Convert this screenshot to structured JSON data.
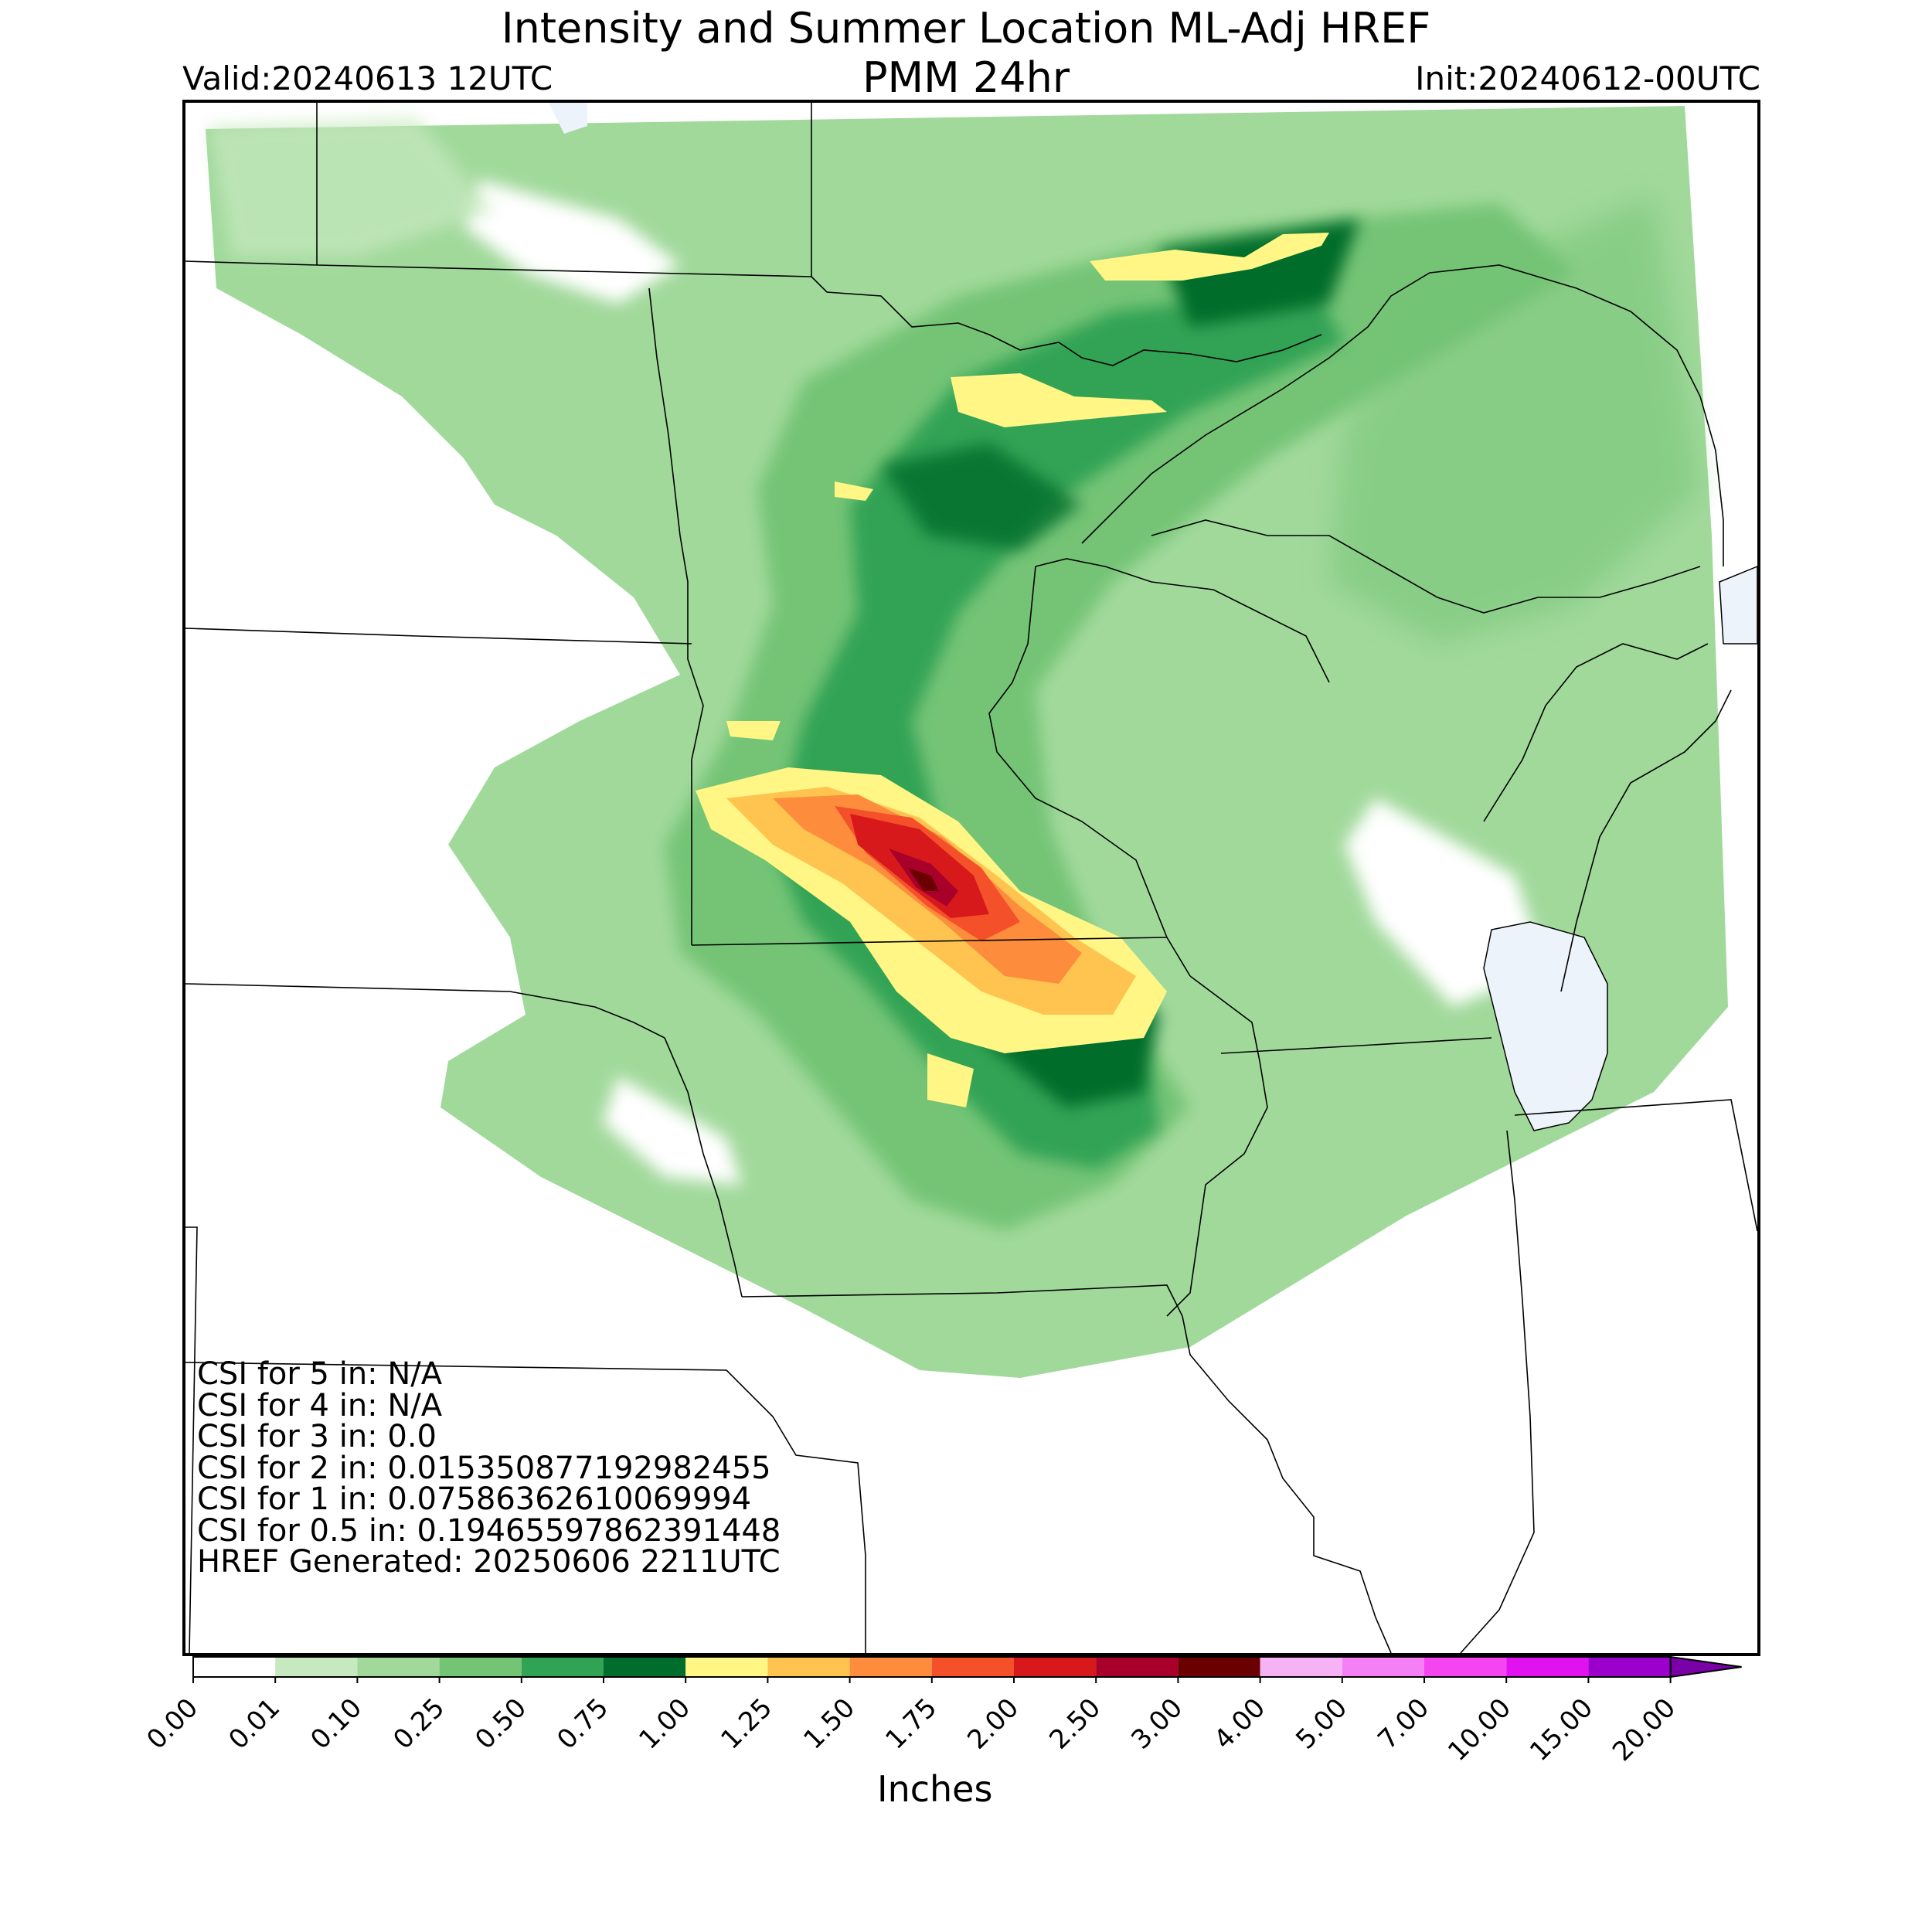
{
  "header": {
    "title_line1": "Intensity and Summer Location ML-Adj HREF",
    "title_line2": "PMM 24hr",
    "valid": "Valid:20240613 12UTC",
    "init": "Init:20240612-00UTC"
  },
  "stats": [
    "CSI for 5 in: N/A",
    "CSI for 4 in: N/A",
    "CSI for 3 in: 0.0",
    "CSI for 2 in: 0.015350877192982455",
    "CSI for 1 in: 0.07586362610069994",
    "CSI for 0.5 in: 0.19465597862391448",
    "HREF Generated: 20250606 2211UTC"
  ],
  "colorbar": {
    "units": "Inches",
    "ticks": [
      "0.00",
      "0.01",
      "0.10",
      "0.25",
      "0.50",
      "0.75",
      "1.00",
      "1.25",
      "1.50",
      "1.75",
      "2.00",
      "2.50",
      "3.00",
      "4.00",
      "5.00",
      "7.00",
      "10.00",
      "15.00",
      "20.00"
    ],
    "colors": [
      "#ffffff",
      "#c7e9c0",
      "#a1d99b",
      "#74c476",
      "#31a354",
      "#006d2c",
      "#fff685",
      "#fec44f",
      "#fd8d3c",
      "#f4512b",
      "#d7191c",
      "#a8002a",
      "#6b0000",
      "#f5b3f5",
      "#f57ff5",
      "#f545f0",
      "#e112f0",
      "#9b00cc"
    ],
    "extend_color": "#7a00a8"
  },
  "map_colors": {
    "land": "#ffffff",
    "lake": "#edf3fa",
    "border": "#000000"
  }
}
